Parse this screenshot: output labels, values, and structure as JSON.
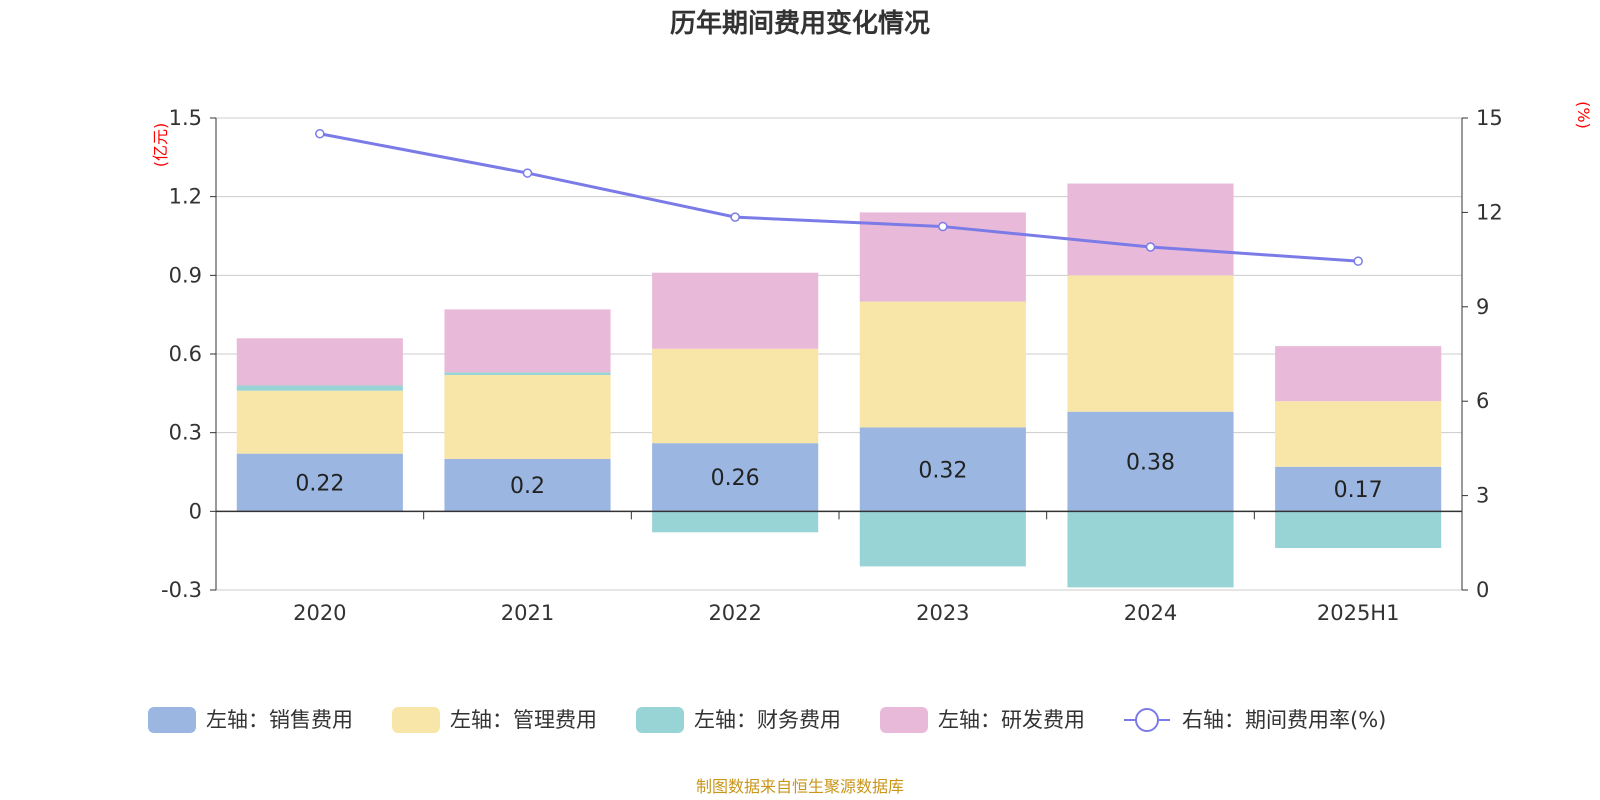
{
  "chart_data": {
    "type": "bar",
    "title": "历年期间费用变化情况",
    "categories": [
      "2020",
      "2021",
      "2022",
      "2023",
      "2024",
      "2025H1"
    ],
    "left_axis": {
      "unit": "(亿元)",
      "ylim": [
        -0.3,
        1.5
      ],
      "ticks": [
        "-0.3",
        "0",
        "0.3",
        "0.6",
        "0.9",
        "1.2",
        "1.5"
      ]
    },
    "right_axis": {
      "unit": "(%)",
      "ylim": [
        0,
        15
      ],
      "ticks": [
        "0",
        "3",
        "6",
        "9",
        "12",
        "15"
      ]
    },
    "stacked": true,
    "series": [
      {
        "name": "左轴：销售费用",
        "axis": "left",
        "type": "bar",
        "color": "#9bb7e1",
        "values": [
          0.22,
          0.2,
          0.26,
          0.32,
          0.38,
          0.17
        ],
        "data_labels": [
          "0.22",
          "0.2",
          "0.26",
          "0.32",
          "0.38",
          "0.17"
        ]
      },
      {
        "name": "左轴：管理费用",
        "axis": "left",
        "type": "bar",
        "color": "#f8e6a8",
        "values": [
          0.24,
          0.32,
          0.36,
          0.48,
          0.52,
          0.25
        ]
      },
      {
        "name": "左轴：财务费用",
        "axis": "left",
        "type": "bar",
        "color": "#98d4d5",
        "values": [
          0.02,
          0.01,
          -0.08,
          -0.21,
          -0.29,
          -0.14
        ]
      },
      {
        "name": "左轴：研发费用",
        "axis": "left",
        "type": "bar",
        "color": "#e8b9d8",
        "values": [
          0.18,
          0.24,
          0.29,
          0.34,
          0.35,
          0.21
        ]
      },
      {
        "name": "右轴：期间费用率(%)",
        "axis": "right",
        "type": "line",
        "color": "#7b7be8",
        "values": [
          14.5,
          13.25,
          11.85,
          11.55,
          10.9,
          10.45
        ]
      }
    ],
    "legend_position": "bottom",
    "grid": true
  },
  "source_text": "制图数据来自恒生聚源数据库"
}
